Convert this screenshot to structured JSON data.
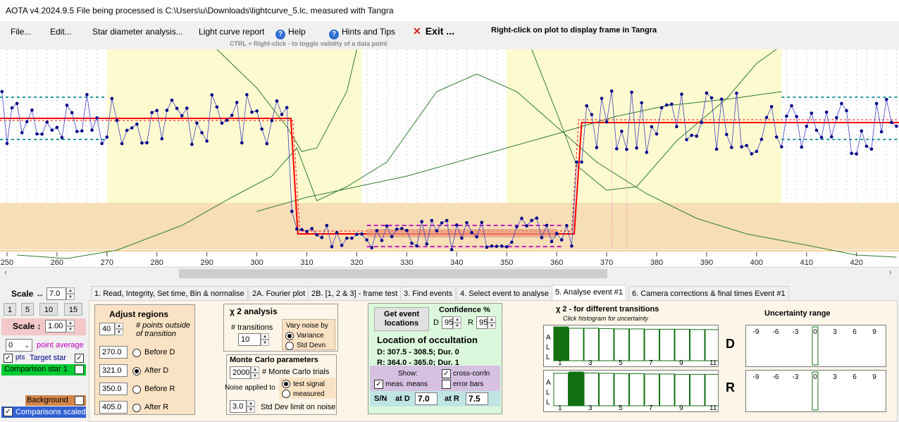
{
  "window": {
    "title": "AOTA v4.2024.9.5    File being processed is C:\\Users\\u\\Downloads\\lightcurve_5.lc, measured with Tangra"
  },
  "menu": {
    "file": "File...",
    "edit": "Edit...",
    "star_diameter": "Star diameter analysis...",
    "lc_report": "Light curve report",
    "help": "Help",
    "hints": "Hints and Tips",
    "exit": "Exit ...",
    "ctrl_hint": "CTRL + Right-click  -  to toggle validity of a data point",
    "right_click_hint": "Right-click on plot to display frame in Tangra"
  },
  "plot": {
    "x_ticks": [
      "250",
      "260",
      "270",
      "280",
      "290",
      "300",
      "310",
      "320",
      "330",
      "340",
      "350",
      "360",
      "370",
      "380",
      "390",
      "400",
      "410",
      "420"
    ],
    "x_range": [
      248.6,
      428.5
    ],
    "colors": {
      "event_band": "#f6deb6",
      "yellow_region": "#fefad0",
      "model": "#ff0000",
      "data": "#00008b",
      "chi": "#2f7d2f"
    }
  },
  "left_panel": {
    "scale_h_label": "Scale ↔",
    "scale_h_value": "7.0",
    "scale_buttons": [
      "1",
      "5",
      "10",
      "15"
    ],
    "scale_v_label": "Scale ↕",
    "scale_v_value": "1.00",
    "point_avg_value": "0",
    "point_avg_label": "point average",
    "pts_label": "pts",
    "target_label": "Target star",
    "comp1_label": "Comparison star 1",
    "background_label": "Background",
    "comps_scaled_label": "Comparisons scaled"
  },
  "tabs": [
    "1.  Read, Integrity, Set time, Bin & normalise",
    "2A. Fourier plot",
    "2B. [1, 2 & 3] - frame test",
    "3. Find events",
    "4. Select event to analyse",
    "5. Analyse event #1",
    "6. Camera corrections & final times Event #1"
  ],
  "adjust": {
    "title": "Adjust regions",
    "points_value": "40",
    "points_label": "# points outside of transition",
    "rows": [
      {
        "value": "270.0",
        "label": "Before D",
        "selected": false
      },
      {
        "value": "321.0",
        "label": "After D",
        "selected": true
      },
      {
        "value": "350.0",
        "label": "Before R",
        "selected": false
      },
      {
        "value": "405.0",
        "label": "After R",
        "selected": false
      }
    ]
  },
  "chi": {
    "title": "χ 2 analysis",
    "transitions_label": "# transitions",
    "transitions_value": "10",
    "vary_label": "Vary noise by",
    "variance_label": "Variance",
    "stddev_label": "Std Devn"
  },
  "monte_carlo": {
    "title": "Monte Carlo parameters",
    "trials_value": "2000",
    "trials_label": "# Monte Carlo trials",
    "noise_label": "Noise applied to",
    "test_signal": "test signal",
    "measured": "measured",
    "sd_value": "3.0",
    "sd_label": "Std Dev limit on noise"
  },
  "location": {
    "get_button": "Get event locations",
    "confidence_label": "Confidence %",
    "d_label": "D",
    "d_value": "95",
    "r_label": "R",
    "r_value": "95",
    "title": "Location of occultation",
    "d_line": "D: 307.5 - 308.5; Dur. 0",
    "r_line": "R: 364.0 - 365.0; Dur. 1",
    "show_label": "Show:",
    "cross_corrln": "cross-corrln",
    "meas_means": "meas. means",
    "error_bars": "error bars",
    "sn_label": "S/N",
    "at_d_label": "at D",
    "sn_d": "7.0",
    "at_r_label": "at R",
    "sn_r": "7.5"
  },
  "chi_hist": {
    "title": "χ 2 - for different transitions",
    "subtitle": "Click histogram for uncertainty",
    "all_letters": [
      "A",
      "L",
      "L"
    ],
    "ticks": [
      "1",
      "3",
      "5",
      "7",
      "9",
      "11"
    ],
    "d_label": "D",
    "r_label": "R",
    "d_values": [
      1.0,
      0.96,
      0.96,
      0.95,
      0.94,
      0.94,
      0.93,
      0.93,
      0.93,
      0.92,
      0.92
    ],
    "r_values": [
      0.96,
      1.0,
      0.97,
      0.96,
      0.95,
      0.95,
      0.94,
      0.94,
      0.93,
      0.93,
      0.93
    ],
    "d_selected": 1,
    "r_selected": 2
  },
  "uncertainty": {
    "title": "Uncertainty range",
    "ticks": [
      "-9",
      "-6",
      "-3",
      "0",
      "3",
      "6",
      "9"
    ]
  }
}
